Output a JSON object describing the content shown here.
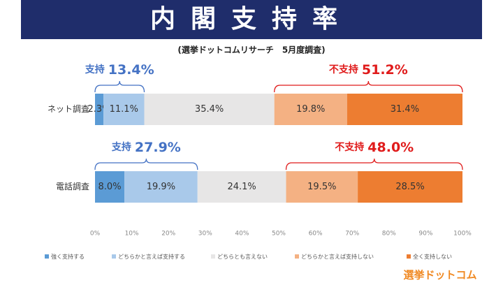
{
  "chart_data": {
    "type": "stacked-bar-horizontal",
    "title": "内閣支持率",
    "subtitle": "(選挙ドットコムリサーチ　5月度調査)",
    "categories": [
      "ネット調査",
      "電話調査"
    ],
    "series": [
      {
        "name": "強く支持する",
        "color": "#5b9bd5",
        "values": [
          2.3,
          8.0
        ],
        "value_labels": [
          "2.3%",
          "8.0%"
        ]
      },
      {
        "name": "どちらかと言えば支持する",
        "color": "#a9c9ea",
        "values": [
          11.1,
          19.9
        ],
        "value_labels": [
          "11.1%",
          "19.9%"
        ]
      },
      {
        "name": "どちらとも言えない",
        "color": "#e7e6e6",
        "values": [
          35.4,
          24.1
        ],
        "value_labels": [
          "35.4%",
          "24.1%"
        ]
      },
      {
        "name": "どちらかと言えば支持しない",
        "color": "#f4b183",
        "values": [
          19.8,
          19.5
        ],
        "value_labels": [
          "19.8%",
          "19.5%"
        ]
      },
      {
        "name": "全く支持しない",
        "color": "#ed7d31",
        "values": [
          31.4,
          28.5
        ],
        "value_labels": [
          "31.4%",
          "28.5%"
        ]
      }
    ],
    "annotations": [
      {
        "category": 0,
        "from": "start",
        "label": "支持",
        "value": 13.4,
        "value_label": "13.4%",
        "color": "#4472c4"
      },
      {
        "category": 0,
        "from": "end",
        "label": "不支持",
        "value": 51.2,
        "value_label": "51.2%",
        "color": "#e01b1b"
      },
      {
        "category": 1,
        "from": "start",
        "label": "支持",
        "value": 27.9,
        "value_label": "27.9%",
        "color": "#4472c4"
      },
      {
        "category": 1,
        "from": "end",
        "label": "不支持",
        "value": 48.0,
        "value_label": "48.0%",
        "color": "#e01b1b"
      }
    ],
    "xlim": [
      0,
      100
    ],
    "xticks": [
      {
        "value": 0,
        "label": "0%"
      },
      {
        "value": 10,
        "label": "10%"
      },
      {
        "value": 20,
        "label": "20%"
      },
      {
        "value": 30,
        "label": "30%"
      },
      {
        "value": 40,
        "label": "40%"
      },
      {
        "value": 50,
        "label": "50%"
      },
      {
        "value": 60,
        "label": "60%"
      },
      {
        "value": 70,
        "label": "70%"
      },
      {
        "value": 80,
        "label": "80%"
      },
      {
        "value": 90,
        "label": "90%"
      },
      {
        "value": 100,
        "label": "100%"
      }
    ],
    "legend": "bottom",
    "logo": "選挙ドットコム"
  }
}
